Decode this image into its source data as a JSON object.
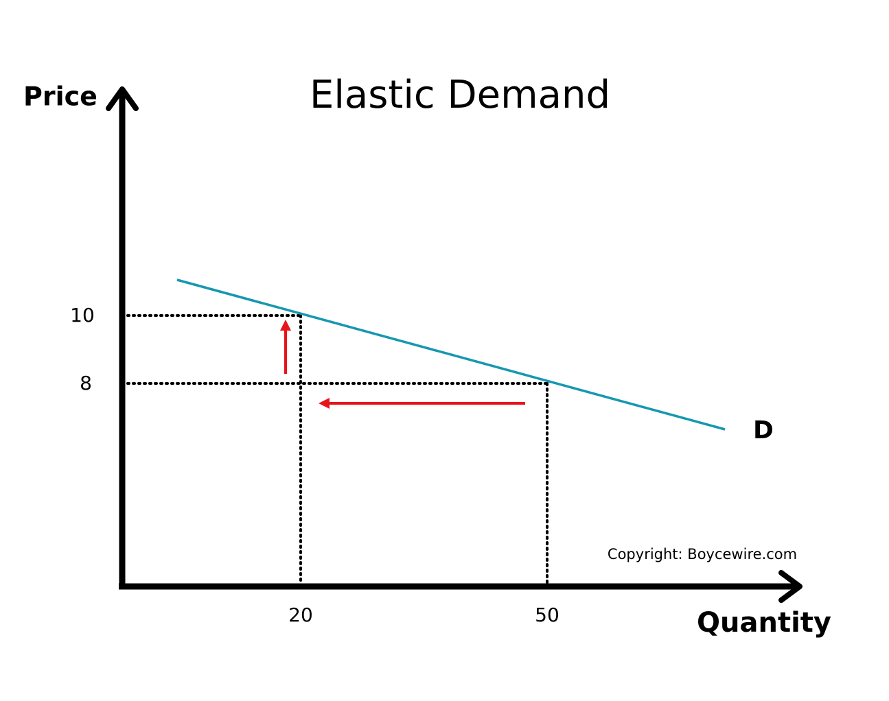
{
  "title": "Elastic Demand",
  "axes": {
    "y_label": "Price",
    "x_label": "Quantity"
  },
  "ticks": {
    "y": [
      "10",
      "8"
    ],
    "x": [
      "20",
      "50"
    ]
  },
  "curve_label": "D",
  "copyright": "Copyright: Boycewire.com"
}
